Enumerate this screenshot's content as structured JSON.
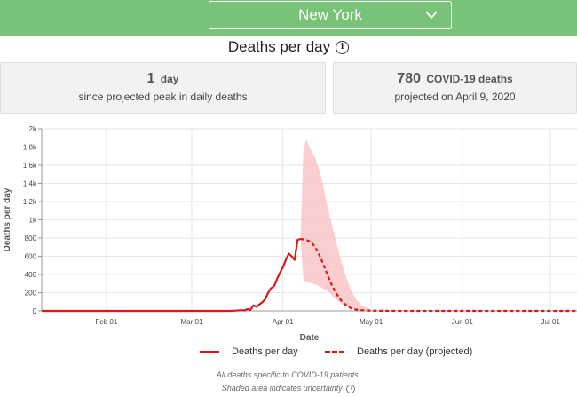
{
  "header": {
    "state_selected": "New York"
  },
  "title": "Deaths per day",
  "stats": [
    {
      "number": "1",
      "unit": "day",
      "subtitle": "since projected peak in daily deaths"
    },
    {
      "number": "780",
      "unit": "COVID-19 deaths",
      "subtitle": "projected on April 9, 2020"
    }
  ],
  "legend": {
    "actual": "Deaths per day",
    "projected": "Deaths per day (projected)"
  },
  "footnotes": {
    "line1": "All deaths specific to COVID-19 patients.",
    "line2": "Shaded area indicates uncertainty"
  },
  "colors": {
    "topbar": "#78c27a",
    "line": "#d7191c",
    "band": "#f9c6c7"
  },
  "chart_data": {
    "type": "line",
    "xlabel": "Date",
    "ylabel": "Deaths per day",
    "ylim": [
      0,
      2000
    ],
    "y_ticks": [
      0,
      200,
      400,
      600,
      800,
      1000,
      1200,
      1400,
      1600,
      1800,
      2000
    ],
    "y_tick_labels": [
      "0",
      "200",
      "400",
      "600",
      "800",
      "1k",
      "1.2k",
      "1.4k",
      "1.6k",
      "1.8k",
      "2k"
    ],
    "x_range": [
      "2020-01-10",
      "2020-07-10"
    ],
    "x_ticks": [
      "2020-02-01",
      "2020-03-01",
      "2020-04-01",
      "2020-05-01",
      "2020-06-01",
      "2020-07-01"
    ],
    "x_tick_labels": [
      "Feb 01",
      "Mar 01",
      "Apr 01",
      "May 01",
      "Jun 01",
      "Jul 01"
    ],
    "grid": true,
    "legend_position": "bottom",
    "series": [
      {
        "name": "Deaths per day",
        "style": "solid",
        "points": [
          [
            "2020-01-10",
            0
          ],
          [
            "2020-03-14",
            0
          ],
          [
            "2020-03-16",
            3
          ],
          [
            "2020-03-18",
            8
          ],
          [
            "2020-03-19",
            5
          ],
          [
            "2020-03-20",
            20
          ],
          [
            "2020-03-21",
            12
          ],
          [
            "2020-03-22",
            60
          ],
          [
            "2020-03-23",
            45
          ],
          [
            "2020-03-24",
            70
          ],
          [
            "2020-03-25",
            95
          ],
          [
            "2020-03-26",
            130
          ],
          [
            "2020-03-27",
            200
          ],
          [
            "2020-03-28",
            250
          ],
          [
            "2020-03-29",
            270
          ],
          [
            "2020-03-30",
            350
          ],
          [
            "2020-03-31",
            420
          ],
          [
            "2020-04-01",
            480
          ],
          [
            "2020-04-02",
            560
          ],
          [
            "2020-04-03",
            630
          ],
          [
            "2020-04-04",
            600
          ],
          [
            "2020-04-05",
            560
          ],
          [
            "2020-04-06",
            780
          ],
          [
            "2020-04-07",
            790
          ]
        ]
      },
      {
        "name": "Deaths per day (projected)",
        "style": "dashed",
        "points": [
          [
            "2020-04-07",
            790
          ],
          [
            "2020-04-08",
            785
          ],
          [
            "2020-04-09",
            780
          ],
          [
            "2020-04-10",
            765
          ],
          [
            "2020-04-11",
            740
          ],
          [
            "2020-04-12",
            700
          ],
          [
            "2020-04-13",
            640
          ],
          [
            "2020-04-14",
            570
          ],
          [
            "2020-04-15",
            490
          ],
          [
            "2020-04-16",
            410
          ],
          [
            "2020-04-17",
            330
          ],
          [
            "2020-04-18",
            260
          ],
          [
            "2020-04-19",
            200
          ],
          [
            "2020-04-20",
            150
          ],
          [
            "2020-04-21",
            108
          ],
          [
            "2020-04-22",
            75
          ],
          [
            "2020-04-23",
            50
          ],
          [
            "2020-04-24",
            32
          ],
          [
            "2020-04-25",
            20
          ],
          [
            "2020-04-27",
            8
          ],
          [
            "2020-05-01",
            2
          ],
          [
            "2020-05-10",
            0
          ],
          [
            "2020-07-10",
            0
          ]
        ]
      }
    ],
    "uncertainty_band": {
      "upper": [
        [
          "2020-04-07",
          790
        ],
        [
          "2020-04-08",
          1780
        ],
        [
          "2020-04-09",
          1880
        ],
        [
          "2020-04-10",
          1800
        ],
        [
          "2020-04-12",
          1680
        ],
        [
          "2020-04-14",
          1480
        ],
        [
          "2020-04-16",
          1170
        ],
        [
          "2020-04-18",
          900
        ],
        [
          "2020-04-20",
          650
        ],
        [
          "2020-04-22",
          420
        ],
        [
          "2020-04-24",
          240
        ],
        [
          "2020-04-26",
          120
        ],
        [
          "2020-04-28",
          55
        ],
        [
          "2020-05-01",
          15
        ],
        [
          "2020-05-05",
          3
        ],
        [
          "2020-05-10",
          0
        ]
      ],
      "lower": [
        [
          "2020-04-07",
          790
        ],
        [
          "2020-04-08",
          330
        ],
        [
          "2020-04-10",
          310
        ],
        [
          "2020-04-12",
          290
        ],
        [
          "2020-04-14",
          260
        ],
        [
          "2020-04-16",
          220
        ],
        [
          "2020-04-18",
          160
        ],
        [
          "2020-04-20",
          100
        ],
        [
          "2020-04-22",
          55
        ],
        [
          "2020-04-24",
          25
        ],
        [
          "2020-04-26",
          10
        ],
        [
          "2020-04-28",
          3
        ],
        [
          "2020-05-01",
          0
        ],
        [
          "2020-05-10",
          0
        ]
      ]
    }
  }
}
